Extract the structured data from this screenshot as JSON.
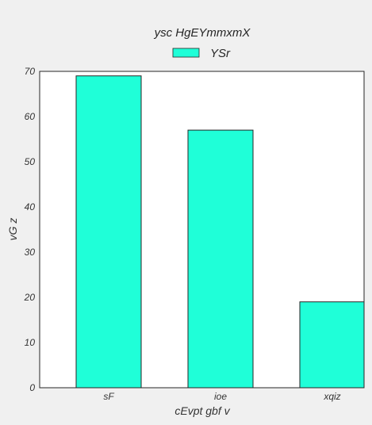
{
  "chart_data": {
    "type": "bar",
    "title": "ysc HgEYmmxmX",
    "xlabel": "cEvpt gbf v",
    "ylabel": "vG z",
    "categories": [
      "sF",
      "ioe",
      "xqiz"
    ],
    "series": [
      {
        "name": "YSr",
        "values": [
          69,
          57,
          19
        ],
        "color": "#1fffd8"
      }
    ],
    "ylim": [
      0,
      70
    ],
    "yticks": [
      0,
      10,
      20,
      30,
      40,
      50,
      60,
      70
    ],
    "grid": false,
    "legend_position": "top-center",
    "colors": {
      "background": "#f0f0f0",
      "plot_area": "#ffffff",
      "edge": "#262626"
    }
  }
}
